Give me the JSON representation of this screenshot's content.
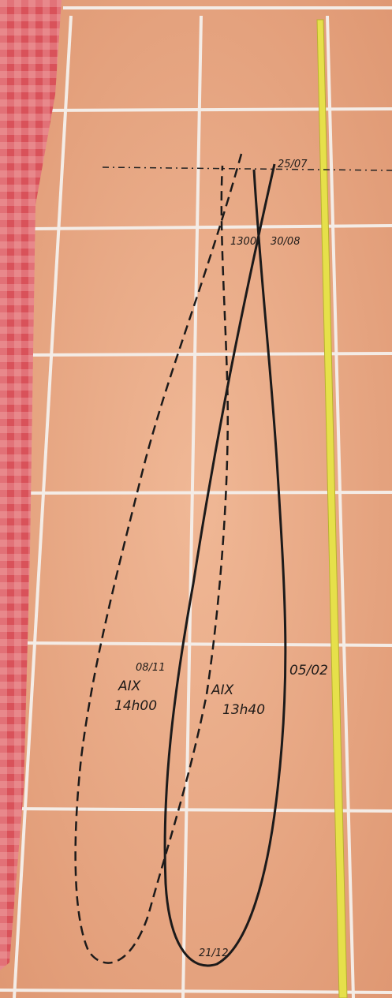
{
  "labels": [
    "25/07",
    "1300",
    "30/08",
    "08/11",
    "AIX",
    "14h00",
    "AIX",
    "13h40",
    "05/02",
    "21/12"
  ]
}
